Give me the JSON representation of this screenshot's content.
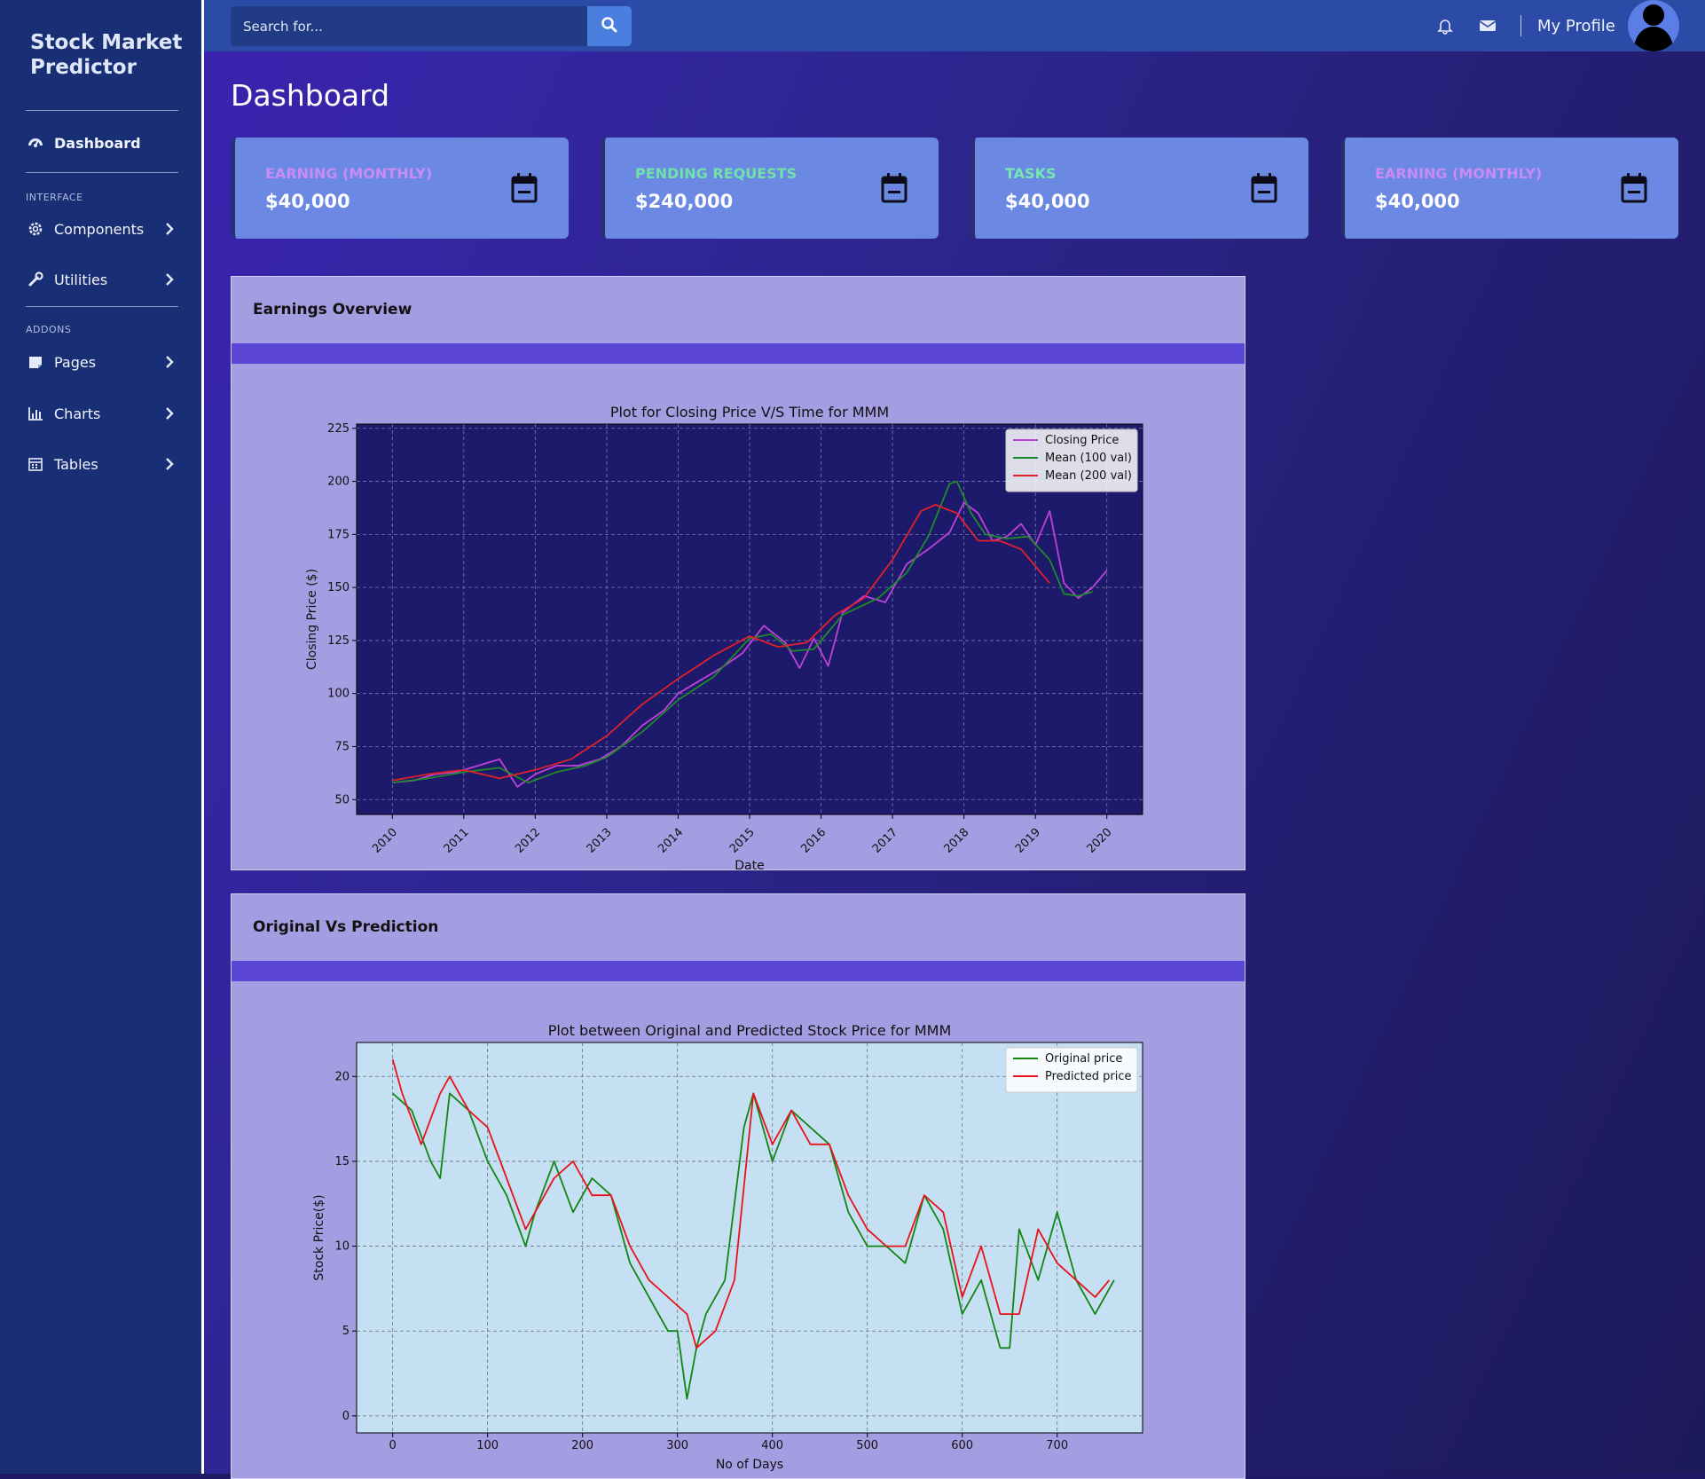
{
  "sidebar": {
    "brand": "Stock Market Predictor",
    "items": [
      {
        "label": "Dashboard",
        "icon": "gauge-icon"
      },
      {
        "label": "Components",
        "icon": "gear-icon"
      },
      {
        "label": "Utilities",
        "icon": "wrench-icon"
      },
      {
        "label": "Pages",
        "icon": "folder-icon"
      },
      {
        "label": "Charts",
        "icon": "bar-chart-icon"
      },
      {
        "label": "Tables",
        "icon": "calendar-icon"
      }
    ],
    "headings": [
      "INTERFACE",
      "ADDONS"
    ]
  },
  "topbar": {
    "search_placeholder": "Search for...",
    "profile_label": "My Profile"
  },
  "page_title": "Dashboard",
  "cards": [
    {
      "label": "EARNING (MONTHLY)",
      "value": "$40,000",
      "label_color": "#c98cf5",
      "icon": "calendar-icon"
    },
    {
      "label": "PENDING REQUESTS",
      "value": "$240,000",
      "label_color": "#6fe3a8",
      "icon": "calendar-icon"
    },
    {
      "label": "TASKS",
      "value": "$40,000",
      "label_color": "#74e8b0",
      "icon": "calendar-icon"
    },
    {
      "label": "EARNING (MONTHLY)",
      "value": "$40,000",
      "label_color": "#c98cf5",
      "icon": "calendar-icon"
    }
  ],
  "panels": [
    {
      "title": "Earnings Overview"
    },
    {
      "title": "Original Vs Prediction"
    }
  ],
  "chart_data": [
    {
      "type": "line",
      "title": "Plot for Closing Price V/S Time for MMM",
      "xlabel": "Date",
      "ylabel": "Closing Price ($)",
      "xlim": [
        2009.5,
        2020.5
      ],
      "ylim": [
        43,
        227
      ],
      "xticks": [
        "2010",
        "2011",
        "2012",
        "2013",
        "2014",
        "2015",
        "2016",
        "2017",
        "2018",
        "2019",
        "2020"
      ],
      "yticks": [
        50,
        75,
        100,
        125,
        150,
        175,
        200,
        225
      ],
      "grid": true,
      "legend": "top-right",
      "background": "#1e1a6b",
      "series": [
        {
          "name": "Closing Price",
          "color": "#c041d8",
          "x": [
            2010.0,
            2010.3,
            2010.6,
            2010.9,
            2011.2,
            2011.5,
            2011.75,
            2012.0,
            2012.3,
            2012.6,
            2012.9,
            2013.2,
            2013.5,
            2013.8,
            2014.0,
            2014.3,
            2014.6,
            2014.9,
            2015.2,
            2015.5,
            2015.7,
            2015.9,
            2016.1,
            2016.3,
            2016.6,
            2016.9,
            2017.2,
            2017.5,
            2017.8,
            2018.0,
            2018.2,
            2018.4,
            2018.6,
            2018.8,
            2019.0,
            2019.2,
            2019.4,
            2019.6,
            2019.8,
            2020.0
          ],
          "y": [
            58,
            59,
            62,
            63,
            66,
            69,
            56,
            62,
            66,
            66,
            69,
            75,
            85,
            92,
            100,
            106,
            112,
            119,
            132,
            124,
            112,
            126,
            113,
            138,
            146,
            143,
            161,
            168,
            176,
            190,
            185,
            172,
            174,
            180,
            170,
            186,
            152,
            145,
            150,
            158
          ]
        },
        {
          "name": "Mean (100 val)",
          "color": "#1e8a2a",
          "x": [
            2010.0,
            2010.5,
            2011.0,
            2011.5,
            2011.9,
            2012.3,
            2012.7,
            2013.0,
            2013.5,
            2014.0,
            2014.5,
            2015.0,
            2015.3,
            2015.6,
            2015.9,
            2016.3,
            2016.8,
            2017.2,
            2017.5,
            2017.8,
            2017.9,
            2018.1,
            2018.3,
            2018.6,
            2018.9,
            2019.2,
            2019.4,
            2019.6,
            2019.8
          ],
          "y": [
            58,
            60,
            63,
            65,
            58,
            63,
            66,
            70,
            82,
            97,
            108,
            126,
            128,
            120,
            121,
            137,
            145,
            157,
            174,
            199,
            200,
            185,
            175,
            173,
            174,
            163,
            147,
            146,
            148
          ]
        },
        {
          "name": "Mean (200 val)",
          "color": "#e0202a",
          "x": [
            2010.0,
            2010.5,
            2011.0,
            2011.5,
            2012.0,
            2012.5,
            2013.0,
            2013.5,
            2014.0,
            2014.5,
            2015.0,
            2015.4,
            2015.8,
            2016.2,
            2016.6,
            2017.0,
            2017.4,
            2017.6,
            2017.9,
            2018.2,
            2018.5,
            2018.8,
            2019.0,
            2019.2
          ],
          "y": [
            59,
            62,
            64,
            60,
            64,
            69,
            80,
            95,
            107,
            118,
            127,
            122,
            124,
            137,
            145,
            163,
            186,
            189,
            185,
            172,
            172,
            168,
            160,
            152
          ]
        }
      ]
    },
    {
      "type": "line",
      "title": "Plot between Original and Predicted Stock Price for MMM",
      "xlabel": "No of Days",
      "ylabel": "Stock Price($)",
      "xlim": [
        -38,
        790
      ],
      "ylim": [
        -1,
        22
      ],
      "xticks": [
        0,
        100,
        200,
        300,
        400,
        500,
        600,
        700
      ],
      "yticks": [
        0,
        5,
        10,
        15,
        20
      ],
      "grid": true,
      "legend": "top-right",
      "background": "#c5e0f3",
      "series": [
        {
          "name": "Original price",
          "color": "#128512",
          "x": [
            0,
            20,
            40,
            50,
            60,
            80,
            100,
            120,
            140,
            150,
            170,
            190,
            210,
            230,
            250,
            270,
            290,
            300,
            310,
            320,
            330,
            350,
            370,
            380,
            400,
            420,
            440,
            460,
            480,
            500,
            520,
            540,
            560,
            580,
            600,
            620,
            640,
            650,
            660,
            680,
            700,
            720,
            740,
            760
          ],
          "y": [
            19,
            18,
            15,
            14,
            19,
            18,
            15,
            13,
            10,
            12,
            15,
            12,
            14,
            13,
            9,
            7,
            5,
            5,
            1,
            4,
            6,
            8,
            17,
            19,
            15,
            18,
            17,
            16,
            12,
            10,
            10,
            9,
            13,
            11,
            6,
            8,
            4,
            4,
            11,
            8,
            12,
            8,
            6,
            8
          ]
        },
        {
          "name": "Predicted price",
          "color": "#e8121b",
          "x": [
            0,
            10,
            30,
            50,
            60,
            80,
            100,
            120,
            140,
            170,
            190,
            210,
            230,
            250,
            270,
            290,
            310,
            320,
            340,
            360,
            380,
            400,
            420,
            440,
            460,
            480,
            500,
            520,
            540,
            560,
            580,
            600,
            620,
            640,
            660,
            680,
            700,
            720,
            740,
            755
          ],
          "y": [
            21,
            19,
            16,
            19,
            20,
            18,
            17,
            14,
            11,
            14,
            15,
            13,
            13,
            10,
            8,
            7,
            6,
            4,
            5,
            8,
            19,
            16,
            18,
            16,
            16,
            13,
            11,
            10,
            10,
            13,
            12,
            7,
            10,
            6,
            6,
            11,
            9,
            8,
            7,
            8
          ]
        }
      ]
    }
  ]
}
